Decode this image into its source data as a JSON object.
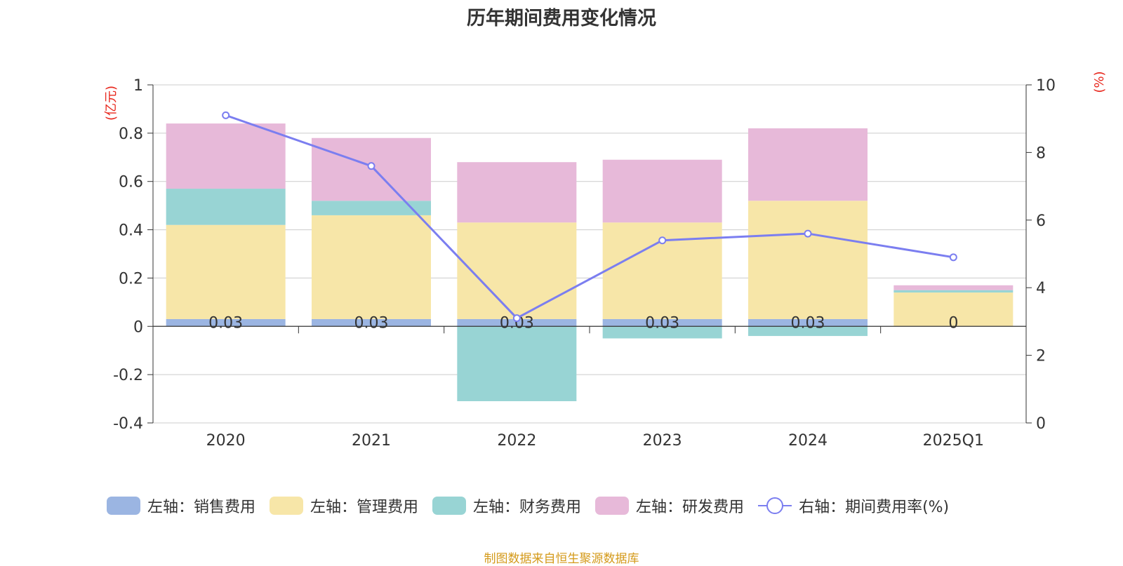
{
  "chart_data": {
    "type": "bar",
    "title": "历年期间费用变化情况",
    "categories": [
      "2020",
      "2021",
      "2022",
      "2023",
      "2024",
      "2025Q1"
    ],
    "left_axis": {
      "label": "(亿元)",
      "ticks": [
        "1",
        "0.8",
        "0.6",
        "0.4",
        "0.2",
        "0",
        "-0.2",
        "-0.4"
      ],
      "ylim": [
        -0.4,
        1
      ]
    },
    "right_axis": {
      "label": "(%)",
      "ticks": [
        "10",
        "8",
        "6",
        "4",
        "2",
        "0"
      ],
      "ylim": [
        0,
        10
      ]
    },
    "series": [
      {
        "name": "左轴：销售费用",
        "type": "bar",
        "color": "#9bb5e2",
        "values": [
          0.03,
          0.03,
          0.03,
          0.03,
          0.03,
          0
        ],
        "labels": [
          "0.03",
          "0.03",
          "0.03",
          "0.03",
          "0.03",
          "0"
        ]
      },
      {
        "name": "左轴：管理费用",
        "type": "bar",
        "color": "#f7e6a8",
        "values": [
          0.39,
          0.43,
          0.4,
          0.4,
          0.49,
          0.14
        ]
      },
      {
        "name": "左轴：财务费用",
        "type": "bar",
        "color": "#98d4d4",
        "values": [
          0.15,
          0.06,
          -0.31,
          -0.05,
          -0.04,
          0.01
        ]
      },
      {
        "name": "左轴：研发费用",
        "type": "bar",
        "color": "#e7b9d9",
        "values": [
          0.27,
          0.26,
          0.25,
          0.26,
          0.3,
          0.02
        ]
      },
      {
        "name": "右轴：期间费用率(%)",
        "type": "line",
        "axis": "right",
        "color": "#7b7ef0",
        "values": [
          9.1,
          7.6,
          3.1,
          5.4,
          5.6,
          4.9
        ]
      }
    ],
    "grid": true,
    "legend_position": "bottom"
  },
  "footer": {
    "source": "制图数据来自恒生聚源数据库"
  }
}
